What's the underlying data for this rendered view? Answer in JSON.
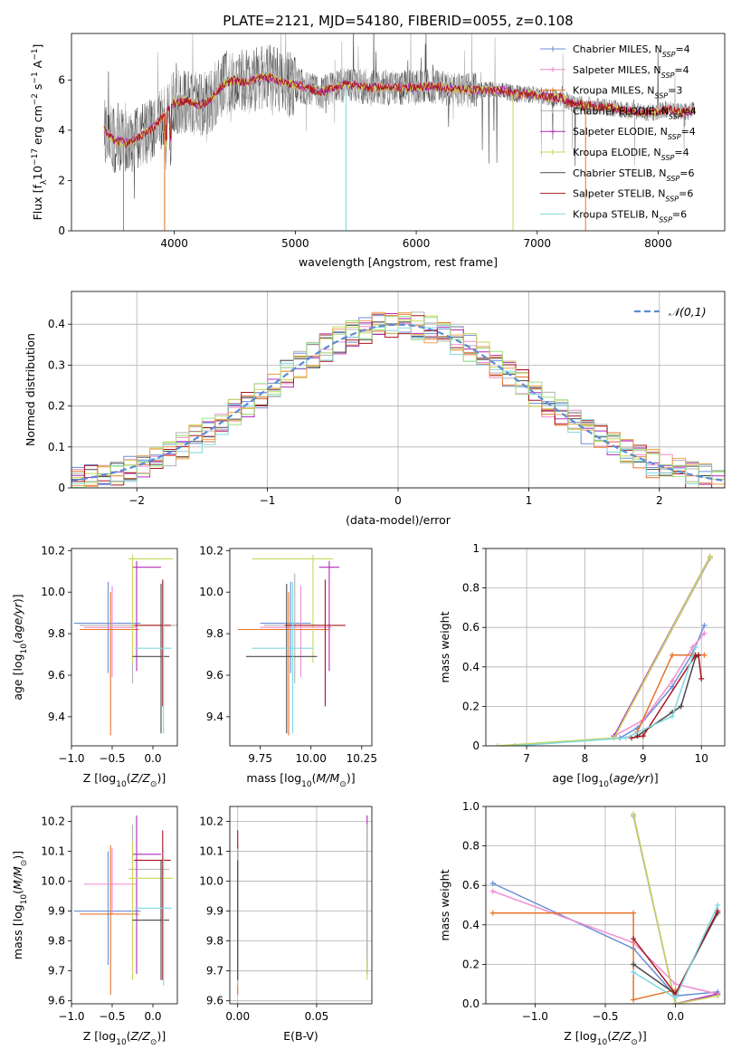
{
  "figure": {
    "title": "PLATE=2121, MJD=54180, FIBERID=0055, z=0.108"
  },
  "chart_data": [
    {
      "id": "spectrum",
      "type": "line",
      "xlabel": "wavelength [Angstrom, rest frame]",
      "ylabel": "Flux [f_λ 10^-17 erg cm^-2 s^-1 A^-1]",
      "xlim": [
        3150,
        8550
      ],
      "ylim": [
        0,
        7.85
      ],
      "xticks": [
        4000,
        5000,
        6000,
        7000,
        8000
      ],
      "yticks": [
        0,
        2,
        4,
        6
      ],
      "grid": false,
      "legend_position": "right",
      "series": [
        {
          "name": "Chabrier MILES, N_SSP=4",
          "color": "#6b8fd6"
        },
        {
          "name": "Salpeter MILES, N_SSP=4",
          "color": "#f08ccf"
        },
        {
          "name": "Kroupa MILES, N_SSP=3",
          "color": "#e8732b"
        },
        {
          "name": "Chabrier ELODIE, N_SSP=4",
          "color": "#b3b3b3"
        },
        {
          "name": "Salpeter ELODIE, N_SSP=4",
          "color": "#b02bb8"
        },
        {
          "name": "Kroupa ELODIE, N_SSP=4",
          "color": "#c8d65a"
        },
        {
          "name": "Chabrier STELIB, N_SSP=6",
          "color": "#4a4a4a"
        },
        {
          "name": "Salpeter STELIB, N_SSP=6",
          "color": "#a8171e"
        },
        {
          "name": "Kroupa STELIB, N_SSP=6",
          "color": "#7fd8e0"
        }
      ],
      "continuum_points": [
        [
          3420,
          4.0
        ],
        [
          3500,
          3.6
        ],
        [
          3600,
          3.5
        ],
        [
          3700,
          3.7
        ],
        [
          3800,
          4.0
        ],
        [
          3900,
          4.5
        ],
        [
          4000,
          5.1
        ],
        [
          4100,
          5.2
        ],
        [
          4200,
          5.0
        ],
        [
          4300,
          5.2
        ],
        [
          4400,
          5.8
        ],
        [
          4500,
          6.0
        ],
        [
          4600,
          5.9
        ],
        [
          4700,
          6.1
        ],
        [
          4800,
          6.1
        ],
        [
          4900,
          5.9
        ],
        [
          5000,
          5.8
        ],
        [
          5100,
          5.7
        ],
        [
          5200,
          5.5
        ],
        [
          5300,
          5.7
        ],
        [
          5400,
          5.8
        ],
        [
          5500,
          5.8
        ],
        [
          5600,
          5.7
        ],
        [
          5700,
          5.7
        ],
        [
          5800,
          5.7
        ],
        [
          5900,
          5.7
        ],
        [
          6000,
          5.7
        ],
        [
          6100,
          5.75
        ],
        [
          6200,
          5.75
        ],
        [
          6300,
          5.6
        ],
        [
          6400,
          5.6
        ],
        [
          6500,
          5.6
        ],
        [
          6600,
          5.6
        ],
        [
          6700,
          5.6
        ],
        [
          6800,
          5.45
        ],
        [
          6900,
          5.45
        ],
        [
          7000,
          5.4
        ],
        [
          7100,
          5.3
        ],
        [
          7200,
          5.3
        ],
        [
          7300,
          5.05
        ],
        [
          7400,
          5.0
        ],
        [
          7500,
          4.95
        ],
        [
          7600,
          4.9
        ],
        [
          7700,
          4.8
        ],
        [
          7800,
          4.75
        ],
        [
          7900,
          4.7
        ],
        [
          8000,
          4.75
        ],
        [
          8100,
          4.85
        ],
        [
          8200,
          4.7
        ],
        [
          8300,
          4.8
        ]
      ]
    },
    {
      "id": "residuals",
      "type": "line",
      "xlabel": "(data-model)/error",
      "ylabel": "Normed distribution",
      "xlim": [
        -2.5,
        2.5
      ],
      "ylim": [
        0,
        0.48
      ],
      "xticks": [
        -2,
        -1,
        0,
        1,
        2
      ],
      "yticks": [
        0.0,
        0.1,
        0.2,
        0.3,
        0.4
      ],
      "grid": true,
      "legend": "𝒩(0,1)",
      "legend_position": "top-right",
      "gaussian": {
        "mean": 0,
        "sigma": 1,
        "color": "#5b8bd6"
      },
      "hist_bins": {
        "start": -2.5,
        "width": 0.1,
        "count": 50
      }
    },
    {
      "id": "age_vs_Z",
      "type": "scatter",
      "xlabel": "Z [log10(Z/Z⊙)]",
      "ylabel": "age [log10(age/yr)]",
      "xlim": [
        -1.0,
        0.3
      ],
      "ylim": [
        9.26,
        10.21
      ],
      "xticks": [
        -1.0,
        -0.5,
        0.0
      ],
      "yticks": [
        9.4,
        9.6,
        9.8,
        10.0,
        10.2
      ],
      "grid": false,
      "points": [
        {
          "x": -0.55,
          "y": 9.85,
          "xerr": [
            0.42,
            0.4
          ],
          "yerr": [
            0.24,
            0.2
          ],
          "color": "#6b8fd6"
        },
        {
          "x": -0.5,
          "y": 9.83,
          "xerr": [
            0.35,
            0.3
          ],
          "yerr": [
            0.24,
            0.2
          ],
          "color": "#f08ccf"
        },
        {
          "x": -0.52,
          "y": 9.82,
          "xerr": [
            0.38,
            0.35
          ],
          "yerr": [
            0.51,
            0.18
          ],
          "color": "#e8732b"
        },
        {
          "x": -0.25,
          "y": 9.84,
          "xerr": [
            0.65,
            0.55
          ],
          "yerr": [
            0.28,
            0.25
          ],
          "color": "#b3b3b3"
        },
        {
          "x": -0.2,
          "y": 10.12,
          "xerr": [
            0.05,
            0.3
          ],
          "yerr": [
            0.5,
            0.03
          ],
          "color": "#b02bb8"
        },
        {
          "x": -0.25,
          "y": 10.16,
          "xerr": [
            0.05,
            0.5
          ],
          "yerr": [
            0.5,
            0.02
          ],
          "color": "#c8d65a"
        },
        {
          "x": 0.1,
          "y": 9.69,
          "xerr": [
            0.35,
            0.1
          ],
          "yerr": [
            0.37,
            0.35
          ],
          "color": "#4a4a4a"
        },
        {
          "x": 0.12,
          "y": 9.84,
          "xerr": [
            0.35,
            0.1
          ],
          "yerr": [
            0.39,
            0.22
          ],
          "color": "#a8171e"
        },
        {
          "x": 0.13,
          "y": 9.73,
          "xerr": [
            0.35,
            0.1
          ],
          "yerr": [
            0.41,
            0.32
          ],
          "color": "#7fd8e0"
        }
      ]
    },
    {
      "id": "age_vs_mass",
      "type": "scatter",
      "xlabel": "mass [log10(M/M⊙)]",
      "ylabel": "",
      "xlim": [
        9.6,
        10.3
      ],
      "ylim": [
        9.26,
        10.21
      ],
      "xticks": [
        9.75,
        10.0,
        10.25
      ],
      "yticks": [
        9.4,
        9.6,
        9.8,
        10.0,
        10.2
      ],
      "grid": false,
      "points": [
        {
          "x": 9.9,
          "y": 9.85,
          "xerr": [
            0.15,
            0.1
          ],
          "yerr": [
            0.24,
            0.2
          ],
          "color": "#6b8fd6"
        },
        {
          "x": 9.95,
          "y": 9.83,
          "xerr": [
            0.2,
            0.15
          ],
          "yerr": [
            0.24,
            0.2
          ],
          "color": "#f08ccf"
        },
        {
          "x": 9.89,
          "y": 9.82,
          "xerr": [
            0.25,
            0.2
          ],
          "yerr": [
            0.51,
            0.18
          ],
          "color": "#e8732b"
        },
        {
          "x": 9.92,
          "y": 9.84,
          "xerr": [
            0.15,
            0.12
          ],
          "yerr": [
            0.28,
            0.25
          ],
          "color": "#b3b3b3"
        },
        {
          "x": 10.09,
          "y": 10.12,
          "xerr": [
            0.05,
            0.05
          ],
          "yerr": [
            0.5,
            0.03
          ],
          "color": "#b02bb8"
        },
        {
          "x": 10.01,
          "y": 10.16,
          "xerr": [
            0.3,
            0.1
          ],
          "yerr": [
            0.5,
            0.02
          ],
          "color": "#c8d65a"
        },
        {
          "x": 9.88,
          "y": 9.69,
          "xerr": [
            0.2,
            0.15
          ],
          "yerr": [
            0.37,
            0.35
          ],
          "color": "#4a4a4a"
        },
        {
          "x": 10.07,
          "y": 9.84,
          "xerr": [
            0.2,
            0.1
          ],
          "yerr": [
            0.39,
            0.22
          ],
          "color": "#a8171e"
        },
        {
          "x": 9.91,
          "y": 9.73,
          "xerr": [
            0.2,
            0.1
          ],
          "yerr": [
            0.41,
            0.32
          ],
          "color": "#7fd8e0"
        }
      ]
    },
    {
      "id": "mw_vs_age",
      "type": "line",
      "xlabel": "age [log10(age/yr)]",
      "ylabel": "mass weight",
      "xlim": [
        6.3,
        10.4
      ],
      "ylim": [
        0,
        1.0
      ],
      "xticks": [
        7,
        8,
        9,
        10
      ],
      "yticks": [
        0.0,
        0.2,
        0.4,
        0.6,
        0.8,
        1.0
      ],
      "grid": true,
      "series": [
        {
          "color": "#6b8fd6",
          "x": [
            8.6,
            8.9,
            9.5,
            9.85,
            10.05
          ],
          "y": [
            0.04,
            0.09,
            0.3,
            0.47,
            0.61
          ]
        },
        {
          "color": "#f08ccf",
          "x": [
            8.5,
            9.0,
            9.5,
            9.85,
            10.05
          ],
          "y": [
            0.05,
            0.13,
            0.33,
            0.5,
            0.57
          ]
        },
        {
          "color": "#e8732b",
          "x": [
            8.9,
            9.5,
            9.85,
            10.05
          ],
          "y": [
            0.07,
            0.46,
            0.46,
            0.46
          ]
        },
        {
          "color": "#b3b3b3",
          "x": [
            8.5,
            10.15
          ],
          "y": [
            0.04,
            0.95
          ]
        },
        {
          "color": "#b02bb8",
          "x": [
            8.5,
            10.15
          ],
          "y": [
            0.05,
            0.96
          ]
        },
        {
          "color": "#c8d65a",
          "x": [
            6.5,
            8.5,
            10.15
          ],
          "y": [
            0.0,
            0.04,
            0.96
          ]
        },
        {
          "color": "#4a4a4a",
          "x": [
            8.9,
            9.5,
            9.65,
            9.9,
            9.95
          ],
          "y": [
            0.05,
            0.17,
            0.2,
            0.45,
            0.46
          ]
        },
        {
          "color": "#a8171e",
          "x": [
            8.8,
            9.0,
            9.9,
            9.95,
            10.0
          ],
          "y": [
            0.04,
            0.05,
            0.46,
            0.46,
            0.34
          ]
        },
        {
          "color": "#7fd8e0",
          "x": [
            6.8,
            8.7,
            9.5,
            9.9
          ],
          "y": [
            0.0,
            0.04,
            0.15,
            0.5
          ]
        }
      ]
    },
    {
      "id": "mass_vs_Z",
      "type": "scatter",
      "xlabel": "Z [log10(Z/Z⊙)]",
      "ylabel": "mass [log10(M/M⊙)]",
      "xlim": [
        -1.0,
        0.3
      ],
      "ylim": [
        9.59,
        10.25
      ],
      "xticks": [
        -1.0,
        -0.5,
        0.0
      ],
      "yticks": [
        9.6,
        9.7,
        9.8,
        9.9,
        10.0,
        10.1,
        10.2
      ],
      "grid": false,
      "points": [
        {
          "x": -0.55,
          "y": 9.9,
          "xerr": [
            0.42,
            0.4
          ],
          "yerr": [
            0.18,
            0.2
          ],
          "color": "#6b8fd6"
        },
        {
          "x": -0.5,
          "y": 9.99,
          "xerr": [
            0.35,
            0.3
          ],
          "yerr": [
            0.1,
            0.12
          ],
          "color": "#f08ccf"
        },
        {
          "x": -0.52,
          "y": 9.89,
          "xerr": [
            0.38,
            0.35
          ],
          "yerr": [
            0.27,
            0.23
          ],
          "color": "#e8732b"
        },
        {
          "x": -0.25,
          "y": 10.04,
          "xerr": [
            0.05,
            0.45
          ],
          "yerr": [
            0.3,
            0.15
          ],
          "color": "#b3b3b3"
        },
        {
          "x": -0.2,
          "y": 10.09,
          "xerr": [
            0.05,
            0.3
          ],
          "yerr": [
            0.4,
            0.13
          ],
          "color": "#b02bb8"
        },
        {
          "x": -0.25,
          "y": 10.01,
          "xerr": [
            0.05,
            0.5
          ],
          "yerr": [
            0.34,
            0.12
          ],
          "color": "#c8d65a"
        },
        {
          "x": 0.1,
          "y": 9.87,
          "xerr": [
            0.35,
            0.1
          ],
          "yerr": [
            0.2,
            0.2
          ],
          "color": "#4a4a4a"
        },
        {
          "x": 0.12,
          "y": 10.07,
          "xerr": [
            0.35,
            0.1
          ],
          "yerr": [
            0.4,
            0.1
          ],
          "color": "#a8171e"
        },
        {
          "x": 0.13,
          "y": 9.91,
          "xerr": [
            0.35,
            0.1
          ],
          "yerr": [
            0.26,
            0.2
          ],
          "color": "#7fd8e0"
        }
      ]
    },
    {
      "id": "mass_vs_EBV",
      "type": "scatter",
      "xlabel": "E(B-V)",
      "ylabel": "",
      "xlim": [
        -0.005,
        0.085
      ],
      "ylim": [
        9.59,
        10.25
      ],
      "xticks": [
        0.0,
        0.05
      ],
      "yticks": [
        9.6,
        9.7,
        9.8,
        9.9,
        10.0,
        10.1,
        10.2
      ],
      "grid": true,
      "points": [
        {
          "x": 0.0,
          "y": 9.9,
          "yerr": [
            0.18,
            0.2
          ],
          "color": "#6b8fd6"
        },
        {
          "x": 0.0,
          "y": 9.99,
          "yerr": [
            0.1,
            0.12
          ],
          "color": "#f08ccf"
        },
        {
          "x": 0.0,
          "y": 9.89,
          "yerr": [
            0.27,
            0.23
          ],
          "color": "#e8732b"
        },
        {
          "x": 0.0,
          "y": 10.07,
          "yerr": [
            0.4,
            0.1
          ],
          "color": "#a8171e"
        },
        {
          "x": 0.0,
          "y": 9.91,
          "yerr": [
            0.26,
            0.2
          ],
          "color": "#7fd8e0"
        },
        {
          "x": 0.0,
          "y": 9.87,
          "yerr": [
            0.2,
            0.2
          ],
          "color": "#4a4a4a"
        },
        {
          "x": 0.082,
          "y": 10.09,
          "yerr": [
            0.4,
            0.13
          ],
          "color": "#b02bb8"
        },
        {
          "x": 0.082,
          "y": 10.01,
          "yerr": [
            0.34,
            0.12
          ],
          "color": "#c8d65a"
        },
        {
          "x": 0.082,
          "y": 10.04,
          "yerr": [
            0.3,
            0.15
          ],
          "color": "#b3b3b3"
        }
      ]
    },
    {
      "id": "mw_vs_Z",
      "type": "line",
      "xlabel": "Z [log10(Z/Z⊙)]",
      "ylabel": "mass weight",
      "xlim": [
        -1.35,
        0.35
      ],
      "ylim": [
        0,
        1.0
      ],
      "xticks": [
        -1.0,
        -0.5,
        0.0
      ],
      "yticks": [
        0.0,
        0.2,
        0.4,
        0.6,
        0.8,
        1.0
      ],
      "grid": true,
      "series": [
        {
          "color": "#6b8fd6",
          "x": [
            -1.3,
            -0.3,
            0.0,
            0.3
          ],
          "y": [
            0.61,
            0.28,
            0.04,
            0.06
          ]
        },
        {
          "color": "#f08ccf",
          "x": [
            -1.3,
            -0.3,
            0.0,
            0.3
          ],
          "y": [
            0.57,
            0.31,
            0.1,
            0.05
          ]
        },
        {
          "color": "#e8732b",
          "x": [
            -1.3,
            -0.3,
            -0.3,
            0.0
          ],
          "y": [
            0.46,
            0.46,
            0.02,
            0.07
          ]
        },
        {
          "color": "#b3b3b3",
          "x": [
            -0.3,
            0.0,
            0.3
          ],
          "y": [
            0.95,
            0.0,
            0.04
          ]
        },
        {
          "color": "#b02bb8",
          "x": [
            -0.3,
            0.0,
            0.3
          ],
          "y": [
            0.96,
            0.0,
            0.05
          ]
        },
        {
          "color": "#c8d65a",
          "x": [
            -0.3,
            0.0,
            0.3
          ],
          "y": [
            0.96,
            0.0,
            0.04
          ]
        },
        {
          "color": "#4a4a4a",
          "x": [
            -0.3,
            0.0,
            0.3
          ],
          "y": [
            0.2,
            0.05,
            0.46
          ]
        },
        {
          "color": "#a8171e",
          "x": [
            -0.3,
            0.0,
            0.3
          ],
          "y": [
            0.33,
            0.05,
            0.47
          ]
        },
        {
          "color": "#7fd8e0",
          "x": [
            -0.3,
            0.0,
            0.3
          ],
          "y": [
            0.16,
            0.03,
            0.5
          ]
        }
      ]
    }
  ]
}
